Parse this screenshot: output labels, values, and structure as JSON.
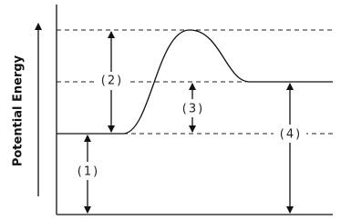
{
  "y_axis_label": "Potential Energy",
  "labels": [
    "(1)",
    "(2)",
    "(3)",
    "(4)"
  ]
}
